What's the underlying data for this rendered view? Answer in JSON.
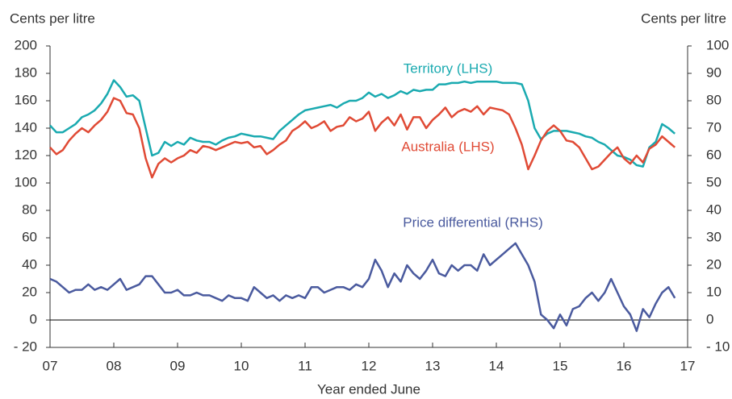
{
  "chart_data": {
    "type": "line",
    "y_label": "Cents per litre",
    "y2_label": "Cents per litre",
    "x_label": "Year ended June",
    "xlim": [
      2007,
      2017
    ],
    "xticks": [
      {
        "value": 2007,
        "label": "07"
      },
      {
        "value": 2008,
        "label": "08"
      },
      {
        "value": 2009,
        "label": "09"
      },
      {
        "value": 2010,
        "label": "10"
      },
      {
        "value": 2011,
        "label": "11"
      },
      {
        "value": 2012,
        "label": "12"
      },
      {
        "value": 2013,
        "label": "13"
      },
      {
        "value": 2014,
        "label": "14"
      },
      {
        "value": 2015,
        "label": "15"
      },
      {
        "value": 2016,
        "label": "16"
      },
      {
        "value": 2017,
        "label": "17"
      }
    ],
    "ylim": [
      -20,
      200
    ],
    "yticks": [
      {
        "value": -20,
        "label": "- 20"
      },
      0,
      20,
      40,
      60,
      80,
      100,
      120,
      140,
      160,
      180,
      200
    ],
    "y2lim": [
      -10,
      100
    ],
    "y2ticks": [
      {
        "value": -10,
        "label": "- 10"
      },
      0,
      10,
      20,
      30,
      40,
      50,
      60,
      70,
      80,
      90,
      100
    ],
    "x": [
      2007.0,
      2007.1,
      2007.2,
      2007.3,
      2007.4,
      2007.5,
      2007.6,
      2007.7,
      2007.8,
      2007.9,
      2008.0,
      2008.1,
      2008.2,
      2008.3,
      2008.4,
      2008.5,
      2008.6,
      2008.7,
      2008.8,
      2008.9,
      2009.0,
      2009.1,
      2009.2,
      2009.3,
      2009.4,
      2009.5,
      2009.6,
      2009.7,
      2009.8,
      2009.9,
      2010.0,
      2010.1,
      2010.2,
      2010.3,
      2010.4,
      2010.5,
      2010.6,
      2010.7,
      2010.8,
      2010.9,
      2011.0,
      2011.1,
      2011.2,
      2011.3,
      2011.4,
      2011.5,
      2011.6,
      2011.7,
      2011.8,
      2011.9,
      2012.0,
      2012.1,
      2012.2,
      2012.3,
      2012.4,
      2012.5,
      2012.6,
      2012.7,
      2012.8,
      2012.9,
      2013.0,
      2013.1,
      2013.2,
      2013.3,
      2013.4,
      2013.5,
      2013.6,
      2013.7,
      2013.8,
      2013.9,
      2014.0,
      2014.1,
      2014.2,
      2014.3,
      2014.4,
      2014.5,
      2014.6,
      2014.7,
      2014.8,
      2014.9,
      2015.0,
      2015.1,
      2015.2,
      2015.3,
      2015.4,
      2015.5,
      2015.6,
      2015.7,
      2015.8,
      2015.9,
      2016.0,
      2016.1,
      2016.2,
      2016.3,
      2016.4,
      2016.5,
      2016.6,
      2016.7,
      2016.8
    ],
    "series": [
      {
        "name": "Territory (LHS)",
        "color": "#1aaab0",
        "values": [
          142,
          137,
          137,
          140,
          143,
          148,
          150,
          153,
          158,
          165,
          175,
          170,
          163,
          164,
          160,
          140,
          120,
          122,
          130,
          127,
          130,
          128,
          133,
          131,
          130,
          130,
          128,
          131,
          133,
          134,
          136,
          135,
          134,
          134,
          133,
          132,
          138,
          142,
          146,
          150,
          153,
          154,
          155,
          156,
          157,
          155,
          158,
          160,
          160,
          162,
          166,
          163,
          165,
          162,
          164,
          167,
          165,
          168,
          167,
          168,
          168,
          172,
          172,
          173,
          173,
          174,
          173,
          174,
          174,
          174,
          174,
          173,
          173,
          173,
          172,
          160,
          140,
          132,
          136,
          138,
          138,
          138,
          137,
          136,
          134,
          133,
          130,
          128,
          124,
          120,
          119,
          117,
          113,
          112,
          126,
          130,
          143,
          140,
          136
        ]
      },
      {
        "name": "Australia (LHS)",
        "color": "#e04a35",
        "values": [
          126,
          121,
          124,
          131,
          136,
          140,
          137,
          142,
          146,
          152,
          162,
          160,
          151,
          150,
          140,
          118,
          104,
          114,
          118,
          115,
          118,
          120,
          124,
          122,
          127,
          126,
          124,
          126,
          128,
          130,
          129,
          130,
          126,
          127,
          121,
          124,
          128,
          131,
          138,
          141,
          145,
          140,
          142,
          145,
          138,
          141,
          142,
          148,
          145,
          147,
          152,
          138,
          144,
          148,
          142,
          150,
          139,
          148,
          148,
          140,
          146,
          150,
          155,
          148,
          152,
          154,
          152,
          156,
          150,
          155,
          154,
          153,
          150,
          140,
          128,
          110,
          120,
          131,
          138,
          142,
          138,
          131,
          130,
          126,
          118,
          110,
          112,
          117,
          122,
          126,
          118,
          114,
          120,
          115,
          125,
          128,
          134,
          130,
          126
        ]
      },
      {
        "name": "Price differential (RHS)",
        "color": "#4a5a9e",
        "axis": "y2",
        "values": [
          15,
          14,
          12,
          10,
          11,
          11,
          13,
          11,
          12,
          11,
          13,
          15,
          11,
          12,
          13,
          16,
          16,
          13,
          10,
          10,
          11,
          9,
          9,
          10,
          9,
          9,
          8,
          7,
          9,
          8,
          8,
          7,
          12,
          10,
          8,
          9,
          7,
          9,
          8,
          9,
          8,
          12,
          12,
          10,
          11,
          12,
          12,
          11,
          13,
          12,
          15,
          22,
          18,
          12,
          17,
          14,
          20,
          17,
          15,
          18,
          22,
          17,
          16,
          20,
          18,
          20,
          20,
          18,
          24,
          20,
          22,
          24,
          26,
          28,
          24,
          20,
          14,
          2,
          0,
          -3,
          2,
          -2,
          4,
          5,
          8,
          10,
          7,
          10,
          15,
          10,
          5,
          2,
          -4,
          4,
          1,
          6,
          10,
          12,
          8
        ]
      }
    ]
  }
}
